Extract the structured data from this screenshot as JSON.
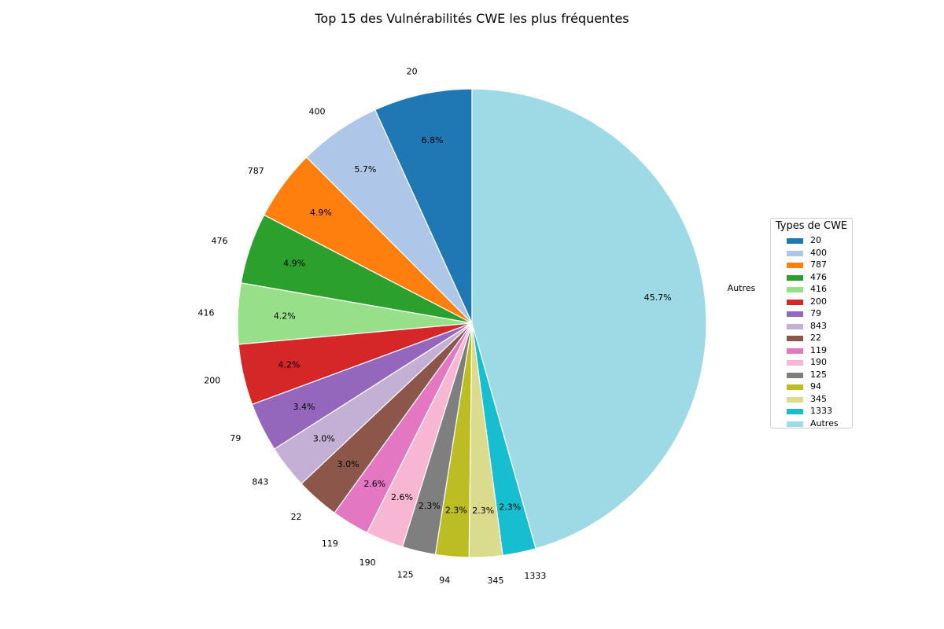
{
  "chart_data": {
    "type": "pie",
    "title": "Top 15 des Vulnérabilités CWE les plus fréquentes",
    "legend_title": "Types de CWE",
    "legend_position": "right",
    "start_angle_deg": 90,
    "direction": "counterclockwise",
    "slices": [
      {
        "label": "20",
        "value": 6.8,
        "pct_label": "6.8%",
        "color": "#1f77b4"
      },
      {
        "label": "400",
        "value": 5.7,
        "pct_label": "5.7%",
        "color": "#aec7e8"
      },
      {
        "label": "787",
        "value": 4.9,
        "pct_label": "4.9%",
        "color": "#ff7f0e"
      },
      {
        "label": "476",
        "value": 4.9,
        "pct_label": "4.9%",
        "color": "#2ca02c"
      },
      {
        "label": "416",
        "value": 4.2,
        "pct_label": "4.2%",
        "color": "#98df8a"
      },
      {
        "label": "200",
        "value": 4.2,
        "pct_label": "4.2%",
        "color": "#d62728"
      },
      {
        "label": "79",
        "value": 3.4,
        "pct_label": "3.4%",
        "color": "#9467bd"
      },
      {
        "label": "843",
        "value": 3.0,
        "pct_label": "3.0%",
        "color": "#c5b0d5"
      },
      {
        "label": "22",
        "value": 3.0,
        "pct_label": "3.0%",
        "color": "#8c564b"
      },
      {
        "label": "119",
        "value": 2.6,
        "pct_label": "2.6%",
        "color": "#e377c2"
      },
      {
        "label": "190",
        "value": 2.6,
        "pct_label": "2.6%",
        "color": "#f7b6d2"
      },
      {
        "label": "125",
        "value": 2.3,
        "pct_label": "2.3%",
        "color": "#7f7f7f"
      },
      {
        "label": "94",
        "value": 2.3,
        "pct_label": "2.3%",
        "color": "#bcbd22"
      },
      {
        "label": "345",
        "value": 2.3,
        "pct_label": "2.3%",
        "color": "#dbdb8d"
      },
      {
        "label": "1333",
        "value": 2.3,
        "pct_label": "2.3%",
        "color": "#17becf"
      },
      {
        "label": "Autres",
        "value": 45.7,
        "pct_label": "45.7%",
        "color": "#9edae5"
      }
    ]
  }
}
